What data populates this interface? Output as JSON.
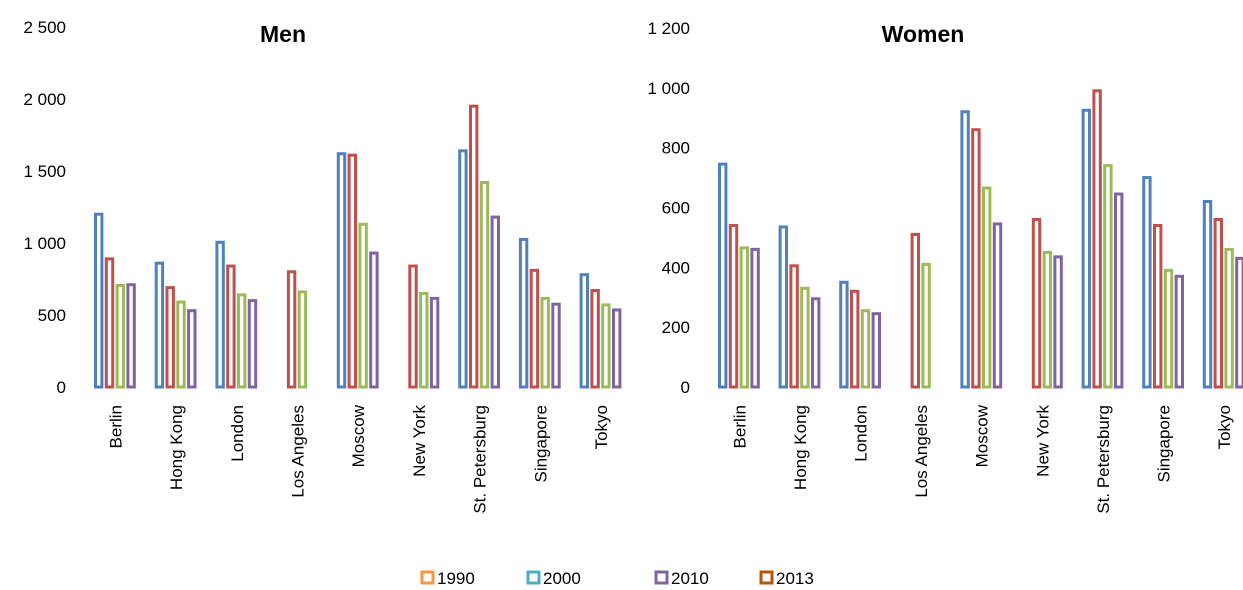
{
  "chart_data": [
    {
      "type": "bar",
      "title": "Men",
      "xlabel": "",
      "ylabel": "",
      "ylim": [
        0,
        2500
      ],
      "yticks": [
        0,
        500,
        1000,
        1500,
        2000,
        2500
      ],
      "ytick_labels": [
        "0",
        "500",
        "1 000",
        "1 500",
        "2 000",
        "2 500"
      ],
      "categories": [
        "Berlin",
        "Hong Kong",
        "London",
        "Los Angeles",
        "Moscow",
        "New York",
        "St. Petersburg",
        "Singapore",
        "Tokyo"
      ],
      "series": [
        {
          "name": "1990",
          "values": [
            1200,
            860,
            1005,
            null,
            1620,
            null,
            1640,
            1025,
            780
          ]
        },
        {
          "name": "2000",
          "values": [
            890,
            690,
            840,
            800,
            1610,
            840,
            1950,
            810,
            670
          ]
        },
        {
          "name": "2010",
          "values": [
            705,
            590,
            640,
            660,
            1130,
            650,
            1420,
            615,
            570
          ]
        },
        {
          "name": "2013",
          "values": [
            710,
            530,
            600,
            null,
            930,
            615,
            1180,
            575,
            535
          ]
        }
      ],
      "grid": false,
      "legend": "bottom"
    },
    {
      "type": "bar",
      "title": "Women",
      "xlabel": "",
      "ylabel": "",
      "ylim": [
        0,
        1200
      ],
      "yticks": [
        0,
        200,
        400,
        600,
        800,
        1000,
        1200
      ],
      "ytick_labels": [
        "0",
        "200",
        "400",
        "600",
        "800",
        "1 000",
        "1 200"
      ],
      "categories": [
        "Berlin",
        "Hong Kong",
        "London",
        "Los Angeles",
        "Moscow",
        "New York",
        "St. Petersburg",
        "Singapore",
        "Tokyo"
      ],
      "series": [
        {
          "name": "1990",
          "values": [
            745,
            535,
            350,
            null,
            920,
            null,
            925,
            700,
            620
          ]
        },
        {
          "name": "2000",
          "values": [
            540,
            405,
            320,
            510,
            860,
            560,
            990,
            540,
            560
          ]
        },
        {
          "name": "2010",
          "values": [
            465,
            330,
            255,
            410,
            665,
            450,
            740,
            390,
            460
          ]
        },
        {
          "name": "2013",
          "values": [
            460,
            295,
            245,
            null,
            545,
            435,
            645,
            370,
            430
          ]
        }
      ],
      "grid": false,
      "legend": "bottom"
    }
  ],
  "series_colors": [
    "#4F81BD",
    "#C0504D",
    "#9BBB59",
    "#8064A2"
  ],
  "legend": {
    "items": [
      {
        "label": "1990",
        "color": "#F79646"
      },
      {
        "label": "2000",
        "color": "#4BACC6"
      },
      {
        "label": "2010",
        "color": "#8064A2"
      },
      {
        "label": "2013",
        "color": "#B65708"
      }
    ]
  }
}
